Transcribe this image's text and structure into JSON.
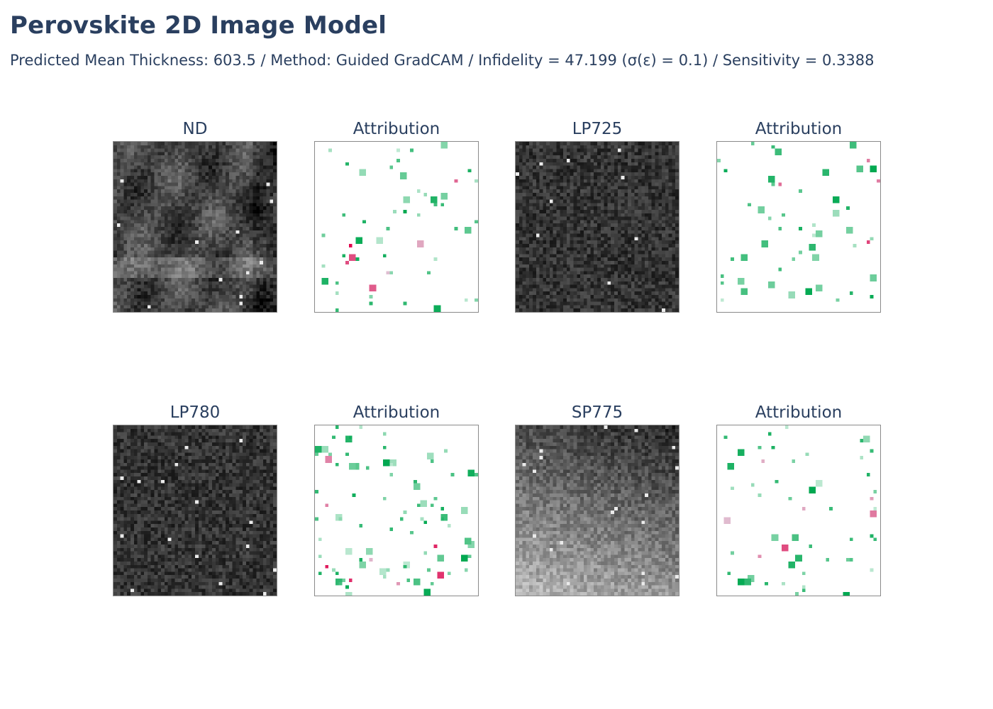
{
  "figure": {
    "title": "Perovskite 2D Image Model",
    "subtitle": "Predicted Mean Thickness: 603.5 / Method: Guided GradCAM / Infidelity = 47.199 (σ(ε) = 0.1) / Sensitivity = 0.3388"
  },
  "chart_data": {
    "type": "heatmap",
    "grid": {
      "rows": 2,
      "cols": 4
    },
    "colors": {
      "text": "#2a3f5f",
      "frame": "#8a8a8a",
      "positive_attribution": "#00a850",
      "negative_attribution": "#e0004a"
    },
    "panels": [
      {
        "id": "nd",
        "title": "ND",
        "kind": "image",
        "style": "fibrous",
        "brightness": "medium",
        "colormap": "gray"
      },
      {
        "id": "nd-attr",
        "title": "Attribution",
        "kind": "attribution",
        "density": "sparse",
        "colormap": "red-white-green"
      },
      {
        "id": "lp725",
        "title": "LP725",
        "kind": "image",
        "style": "noise",
        "brightness": "dark",
        "colormap": "gray"
      },
      {
        "id": "lp725-attr",
        "title": "Attribution",
        "kind": "attribution",
        "density": "sparse",
        "colormap": "red-white-green"
      },
      {
        "id": "lp780",
        "title": "LP780",
        "kind": "image",
        "style": "noise",
        "brightness": "dark",
        "colormap": "gray"
      },
      {
        "id": "lp780-attr",
        "title": "Attribution",
        "kind": "attribution",
        "density": "dense",
        "colormap": "red-white-green"
      },
      {
        "id": "sp775",
        "title": "SP775",
        "kind": "image",
        "style": "gradient",
        "brightness": "bright-bottom-left",
        "colormap": "gray"
      },
      {
        "id": "sp775-attr",
        "title": "Attribution",
        "kind": "attribution",
        "density": "sparse",
        "colormap": "red-white-green"
      }
    ]
  }
}
